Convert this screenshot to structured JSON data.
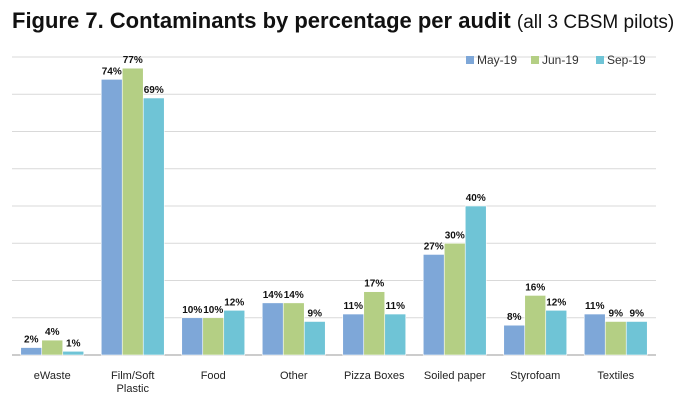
{
  "chart_data": {
    "type": "bar",
    "title": "Figure 7. Contaminants by percentage per audit",
    "subtitle": "(all 3 CBSM pilots)",
    "categories": [
      [
        "eWaste"
      ],
      [
        "Film/Soft",
        "Plastic"
      ],
      [
        "Food"
      ],
      [
        "Other"
      ],
      [
        "Pizza Boxes"
      ],
      [
        "Soiled paper"
      ],
      [
        "Styrofoam"
      ],
      [
        "Textiles"
      ]
    ],
    "series": [
      {
        "name": "May-19",
        "color": "#7ea7d8",
        "values": [
          2,
          74,
          10,
          14,
          11,
          27,
          8,
          11
        ],
        "labels": [
          "2%",
          "74%",
          "10%",
          "14%",
          "11%",
          "27%",
          "8%",
          "11%"
        ]
      },
      {
        "name": "Jun-19",
        "color": "#b4cf84",
        "values": [
          4,
          77,
          10,
          14,
          17,
          30,
          16,
          9
        ],
        "labels": [
          "4%",
          "77%",
          "10%",
          "14%",
          "17%",
          "30%",
          "16%",
          "9%"
        ]
      },
      {
        "name": "Sep-19",
        "color": "#6fc4d6",
        "values": [
          1,
          69,
          12,
          9,
          11,
          40,
          12,
          9
        ],
        "labels": [
          "1%",
          "69%",
          "12%",
          "9%",
          "11%",
          "40%",
          "12%",
          "9%"
        ]
      }
    ],
    "ylim": [
      0,
      80
    ],
    "grid": true,
    "legend": "top-right",
    "xlabel": "",
    "ylabel": ""
  }
}
